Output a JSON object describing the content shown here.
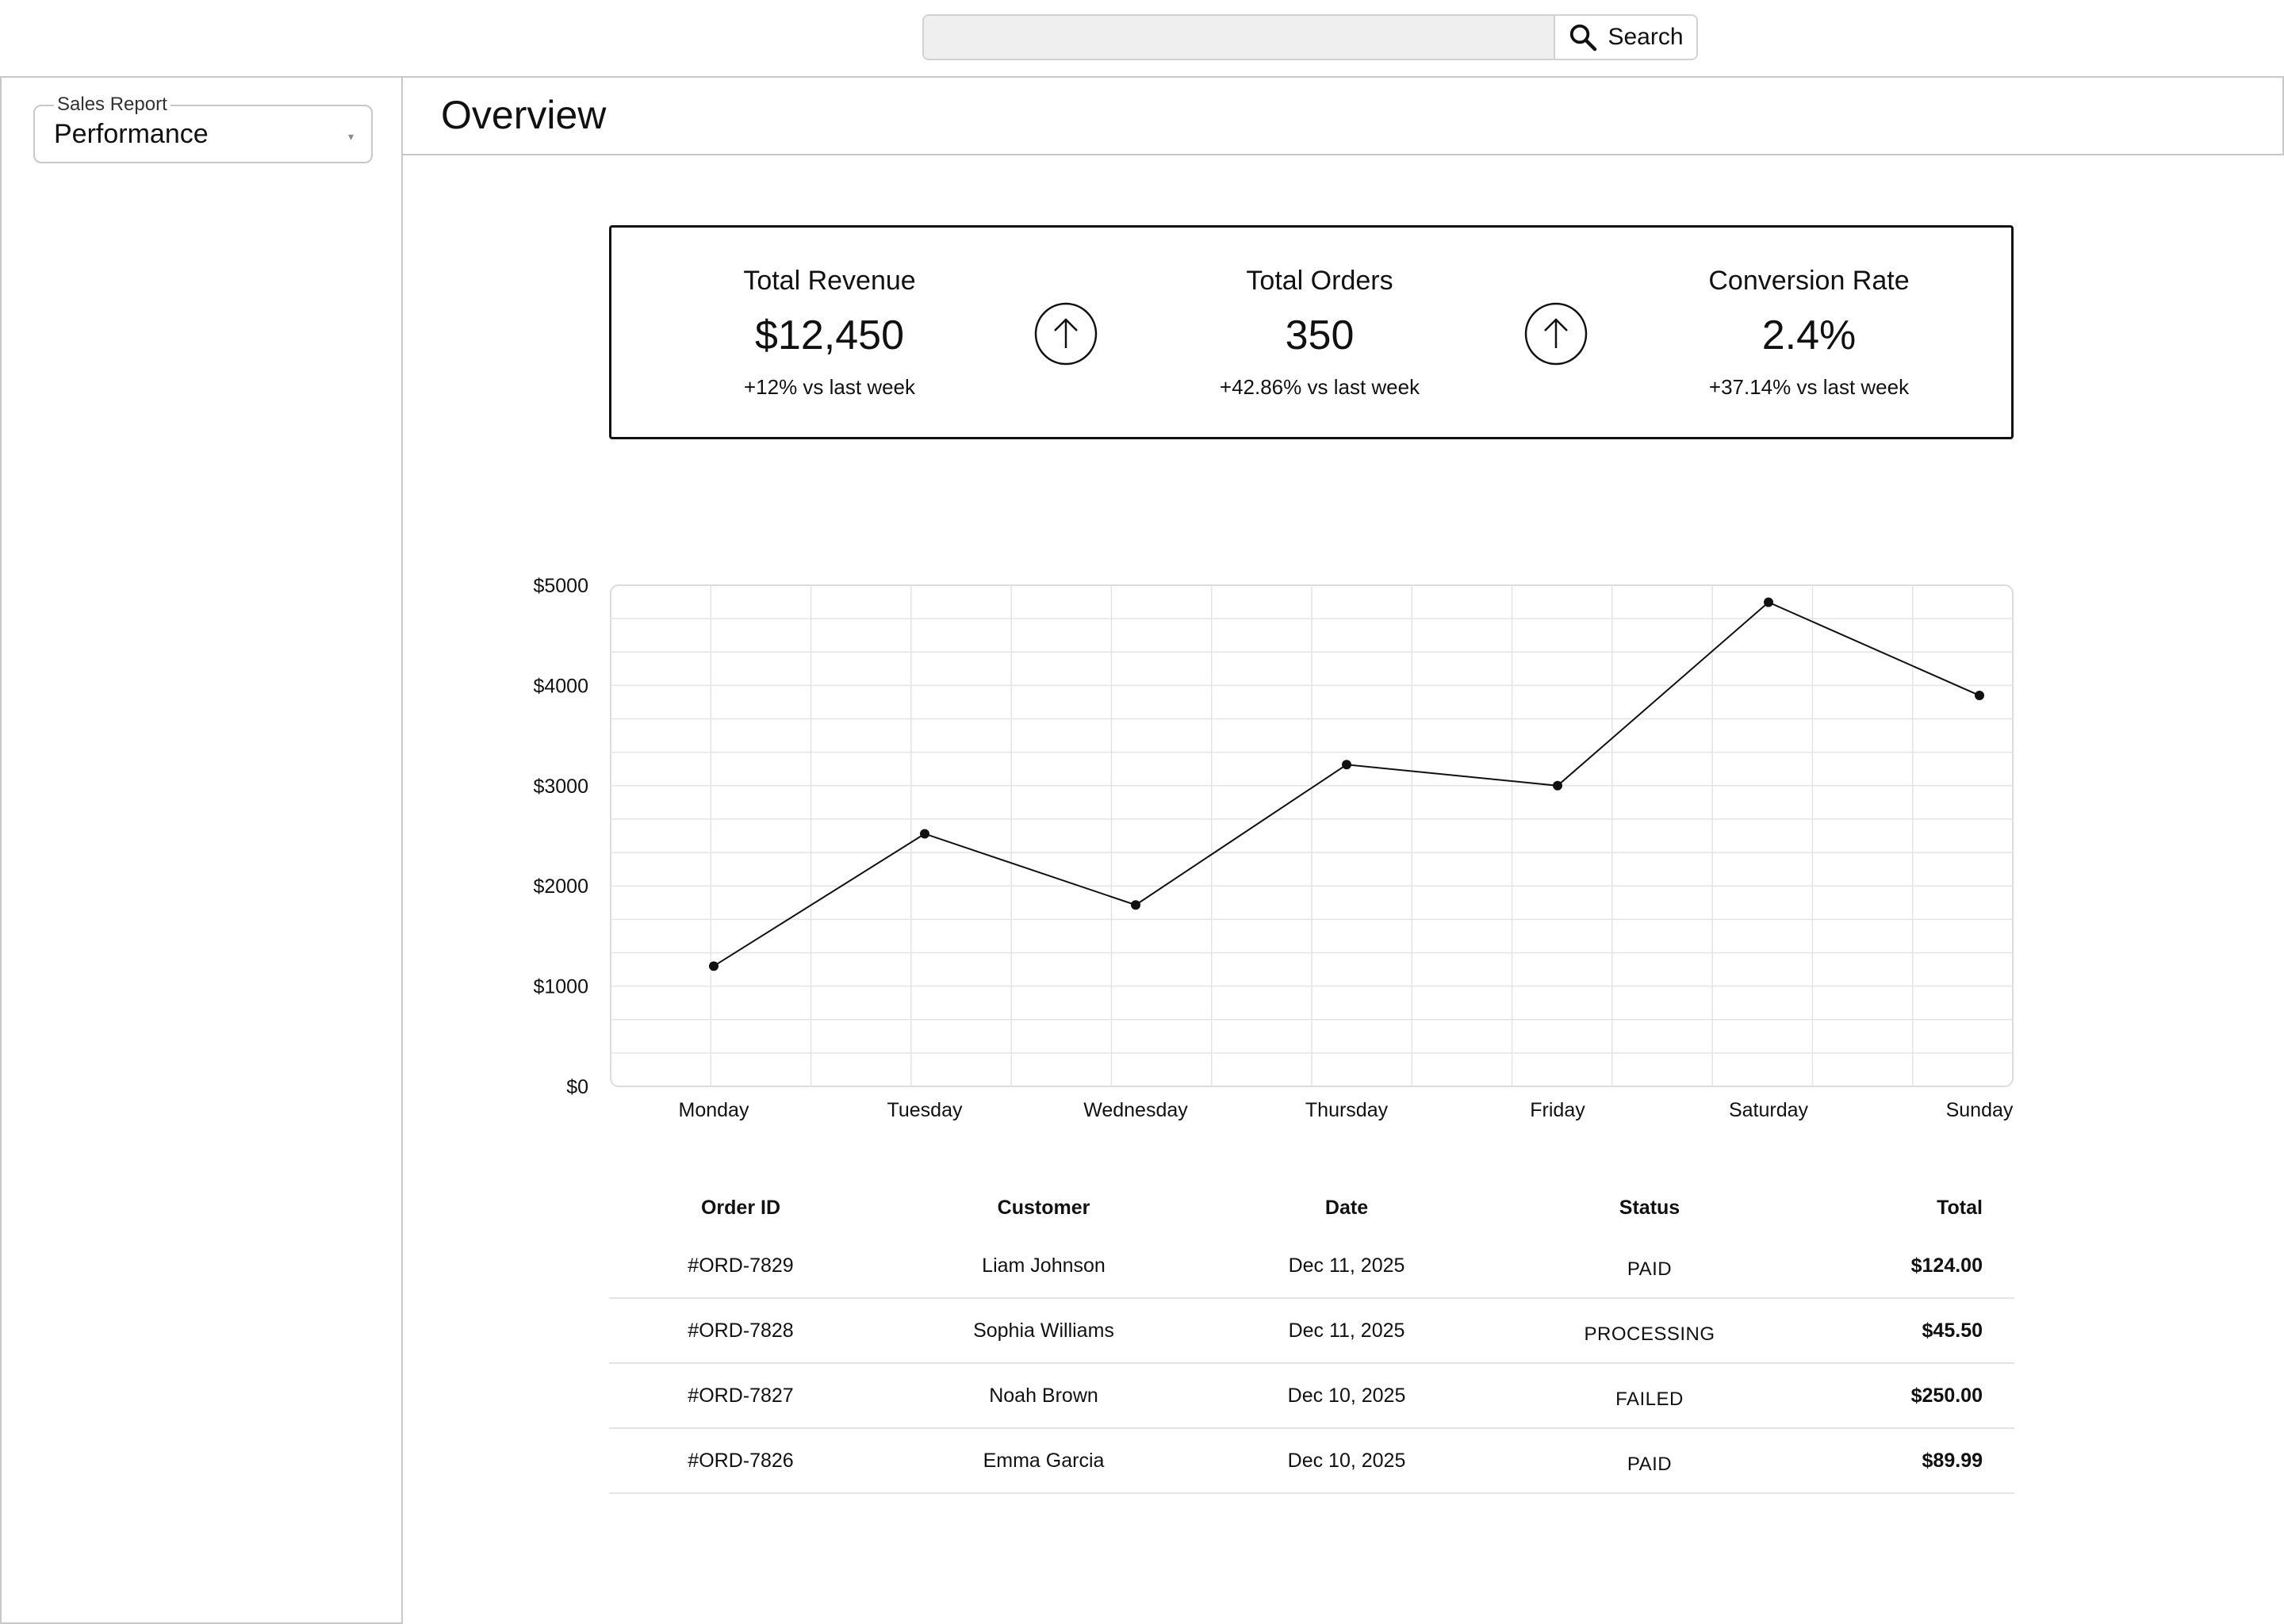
{
  "search": {
    "placeholder": "",
    "button_label": "Search"
  },
  "sidebar": {
    "report_select": {
      "legend": "Sales Report",
      "value": "Performance"
    }
  },
  "header": {
    "title": "Overview"
  },
  "kpis": [
    {
      "title": "Total Revenue",
      "value": "$12,450",
      "delta": "+12% vs last week"
    },
    {
      "title": "Total Orders",
      "value": "350",
      "delta": "+42.86% vs last week"
    },
    {
      "title": "Conversion Rate",
      "value": "2.4%",
      "delta": "+37.14% vs last week"
    }
  ],
  "kpi_arrow_icon": "arrow-up-circle-icon",
  "chart_data": {
    "type": "line",
    "categories": [
      "Monday",
      "Tuesday",
      "Wednesday",
      "Thursday",
      "Friday",
      "Saturday",
      "Sunday"
    ],
    "series": [
      {
        "values": [
          1200,
          2520,
          1810,
          3210,
          3000,
          4830,
          3900
        ]
      }
    ],
    "yticks": [
      "$0",
      "$1000",
      "$2000",
      "$3000",
      "$4000",
      "$5000"
    ],
    "ylim": [
      0,
      5000
    ],
    "grid": true,
    "line_color": "#111111"
  },
  "table": {
    "headers": [
      "Order ID",
      "Customer",
      "Date",
      "Status",
      "Total"
    ],
    "rows": [
      {
        "order_id": "#ORD-7829",
        "customer": "Liam Johnson",
        "date": "Dec 11, 2025",
        "status": "PAID",
        "total": "$124.00"
      },
      {
        "order_id": "#ORD-7828",
        "customer": "Sophia Williams",
        "date": "Dec 11, 2025",
        "status": "PROCESSING",
        "total": "$45.50"
      },
      {
        "order_id": "#ORD-7827",
        "customer": "Noah Brown",
        "date": "Dec 10, 2025",
        "status": "FAILED",
        "total": "$250.00"
      },
      {
        "order_id": "#ORD-7826",
        "customer": "Emma Garcia",
        "date": "Dec 10, 2025",
        "status": "PAID",
        "total": "$89.99"
      }
    ]
  }
}
